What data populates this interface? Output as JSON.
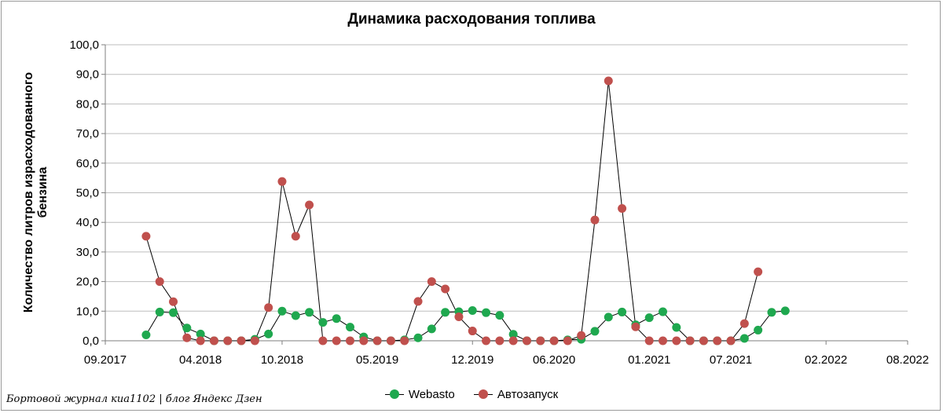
{
  "chart_data": {
    "type": "line",
    "title": "Динамика расходования топлива",
    "xlabel": "",
    "ylabel": "Количество литров израсходованного бензина",
    "ylim": [
      0,
      100
    ],
    "y_ticks": [
      "0,0",
      "10,0",
      "20,0",
      "30,0",
      "40,0",
      "50,0",
      "60,0",
      "70,0",
      "80,0",
      "90,0",
      "100,0"
    ],
    "x_ticks": [
      "09.2017",
      "04.2018",
      "10.2018",
      "05.2019",
      "12.2019",
      "06.2020",
      "01.2021",
      "07.2021",
      "02.2022",
      "08.2022"
    ],
    "grid": true,
    "legend_position": "bottom",
    "x": [
      "2017-12",
      "2018-01",
      "2018-02",
      "2018-03",
      "2018-04",
      "2018-05",
      "2018-06",
      "2018-07",
      "2018-08",
      "2018-09",
      "2018-10",
      "2018-11",
      "2018-12",
      "2019-01",
      "2019-02",
      "2019-03",
      "2019-04",
      "2019-05",
      "2019-06",
      "2019-07",
      "2019-08",
      "2019-09",
      "2019-10",
      "2019-11",
      "2019-12",
      "2020-01",
      "2020-02",
      "2020-03",
      "2020-04",
      "2020-05",
      "2020-06",
      "2020-07",
      "2020-08",
      "2020-09",
      "2020-10",
      "2020-11",
      "2020-12",
      "2021-01",
      "2021-02",
      "2021-03",
      "2021-04",
      "2021-05",
      "2021-06",
      "2021-07",
      "2021-08",
      "2021-09",
      "2021-10",
      "2021-11",
      "2021-12"
    ],
    "series": [
      {
        "name": "Webasto",
        "color": "#1fa84f",
        "values": [
          2.0,
          9.7,
          9.5,
          4.3,
          2.3,
          0.0,
          0.0,
          0.0,
          0.5,
          2.3,
          10.0,
          8.5,
          9.6,
          6.2,
          7.5,
          4.6,
          1.3,
          0.0,
          0.0,
          0.3,
          1.0,
          4.0,
          9.6,
          9.8,
          10.2,
          9.5,
          8.6,
          2.2,
          0.0,
          0.0,
          0.0,
          0.3,
          0.5,
          3.2,
          8.0,
          9.7,
          5.4,
          7.8,
          9.8,
          4.5,
          0.0,
          0.0,
          0.0,
          0.0,
          0.8,
          3.6,
          9.6,
          10.1,
          null
        ]
      },
      {
        "name": "Автозапуск",
        "color": "#c0504d",
        "values": [
          35.3,
          20.0,
          13.2,
          1.0,
          0.0,
          0.0,
          0.0,
          0.0,
          0.0,
          11.2,
          53.8,
          35.3,
          45.9,
          0.0,
          0.0,
          0.0,
          0.0,
          0.0,
          0.0,
          0.0,
          13.3,
          20.0,
          17.5,
          8.1,
          3.3,
          0.0,
          0.0,
          0.0,
          0.0,
          0.0,
          0.0,
          0.0,
          1.8,
          40.8,
          87.8,
          44.7,
          4.7,
          0.0,
          0.0,
          0.0,
          0.0,
          0.0,
          0.0,
          0.0,
          5.8,
          23.3,
          null,
          null,
          null
        ]
      }
    ]
  },
  "watermark": "Бортовой журнал киа1102 | блог Яндекс Дзен"
}
